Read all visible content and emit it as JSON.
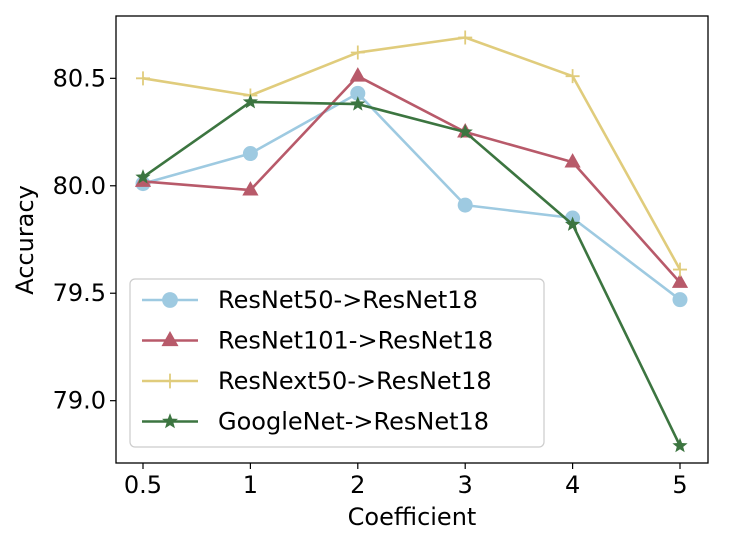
{
  "chart_data": {
    "type": "line",
    "title": "",
    "xlabel": "Coefficient",
    "ylabel": "Accuracy",
    "categories": [
      "0.5",
      "1",
      "2",
      "3",
      "4",
      "5"
    ],
    "ylim": [
      78.71,
      80.79
    ],
    "yticks": [
      "79.0",
      "79.5",
      "80.0",
      "80.5"
    ],
    "grid": false,
    "legend_position": "lower-left",
    "series": [
      {
        "name": "ResNet50->ResNet18",
        "color": "#9ecae1",
        "marker": "circle",
        "values": [
          80.01,
          80.15,
          80.43,
          79.91,
          79.85,
          79.47
        ]
      },
      {
        "name": "ResNet101->ResNet18",
        "color": "#b85a6a",
        "marker": "triangle",
        "values": [
          80.02,
          79.98,
          80.51,
          80.25,
          80.11,
          79.55
        ]
      },
      {
        "name": "ResNext50->ResNet18",
        "color": "#e0cc7c",
        "marker": "plus",
        "values": [
          80.5,
          80.42,
          80.62,
          80.69,
          80.51,
          79.61
        ]
      },
      {
        "name": "GoogleNet->ResNet18",
        "color": "#3c7540",
        "marker": "star",
        "values": [
          80.04,
          80.39,
          80.38,
          80.25,
          79.82,
          78.79
        ]
      }
    ]
  }
}
